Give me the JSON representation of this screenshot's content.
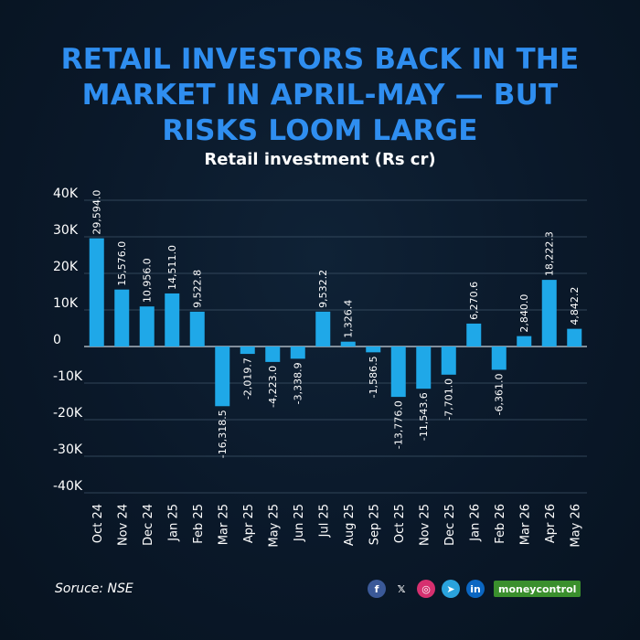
{
  "header": {
    "title_lines": [
      "RETAIL INVESTORS BACK IN THE",
      "MARKET IN APRIL-MAY — BUT",
      "RISKS LOOM LARGE"
    ],
    "subtitle": "Retail investment (Rs cr)"
  },
  "chart_data": {
    "type": "bar",
    "title": "RETAIL INVESTORS BACK IN THE MARKET IN APRIL-MAY — BUT RISKS LOOM LARGE",
    "subtitle": "Retail investment (Rs cr)",
    "categories": [
      "Oct 24",
      "Nov 24",
      "Dec 24",
      "Jan 25",
      "Feb 25",
      "Mar 25",
      "Apr 25",
      "May 25",
      "Jun 25",
      "Jul 25",
      "Aug 25",
      "Sep 25",
      "Oct 25",
      "Nov 25",
      "Dec 25",
      "Jan 26",
      "Feb 26",
      "Mar 26",
      "Apr 26",
      "May 26"
    ],
    "values": [
      29594.0,
      15576.0,
      10956.0,
      14511.0,
      9522.8,
      -16318.5,
      -2019.7,
      -4223.0,
      -3338.9,
      9532.2,
      1326.4,
      -1586.5,
      -13776.0,
      -11543.6,
      -7701.0,
      6270.6,
      -6361.0,
      2840.0,
      18222.3,
      4842.2
    ],
    "value_labels": [
      "29,594.0",
      "15,576.0",
      "10,956.0",
      "14,511.0",
      "9,522.8",
      "-16,318.5",
      "-2,019.7",
      "-4,223.0",
      "-3,338.9",
      "9,532.2",
      "1,326.4",
      "-1,586.5",
      "-13,776.0",
      "-11,543.6",
      "-7,701.0",
      "6,270.6",
      "-6,361.0",
      "2,840.0",
      "18,222.3",
      "4,842.2"
    ],
    "ylim": [
      -40000,
      40000
    ],
    "yticks": [
      40000,
      30000,
      20000,
      10000,
      0,
      -10000,
      -20000,
      -30000,
      -40000
    ],
    "ytick_labels": [
      "40K",
      "30K",
      "20K",
      "10K",
      "0",
      "-10K",
      "-20K",
      "-30K",
      "-40K"
    ],
    "xlabel": "",
    "ylabel": "",
    "grid": true,
    "legend": "none",
    "colors": {
      "bar": "#1fa8e8",
      "grid": "#3f5468",
      "zero_line": "#c9d3dc",
      "text": "#ffffff"
    }
  },
  "footer": {
    "source": "Soruce: NSE",
    "socials": [
      {
        "icon": "facebook-icon",
        "glyph": "f",
        "color": "#3b5998"
      },
      {
        "icon": "x-icon",
        "glyph": "𝕏",
        "color": "transparent"
      },
      {
        "icon": "instagram-icon",
        "glyph": "◎",
        "color": "#d6306f"
      },
      {
        "icon": "telegram-icon",
        "glyph": "➤",
        "color": "#2aa3dd"
      },
      {
        "icon": "linkedin-icon",
        "glyph": "in",
        "color": "#0a66c2"
      }
    ],
    "brand": "moneycontrol"
  },
  "colors": {
    "headline": "#2f8ef0",
    "background": "#0a1829"
  }
}
